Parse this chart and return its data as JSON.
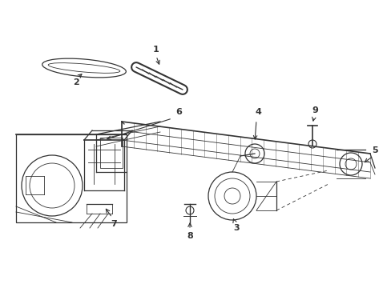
{
  "bg_color": "#ffffff",
  "line_color": "#333333",
  "figsize": [
    4.89,
    3.6
  ],
  "dpi": 100,
  "lw_thin": 0.6,
  "lw_med": 0.9,
  "lw_thick": 1.2,
  "label_fontsize": 8
}
